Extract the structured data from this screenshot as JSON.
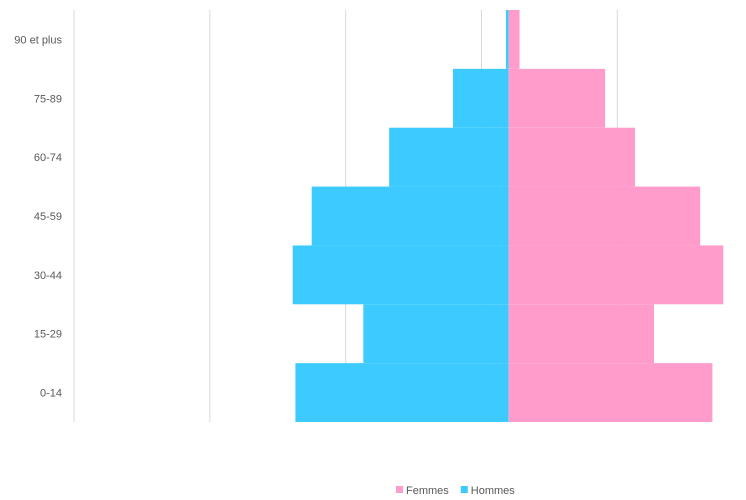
{
  "chart_data": {
    "type": "bar",
    "orientation": "horizontal",
    "layout": "population-pyramid",
    "categories": [
      "0-14",
      "15-29",
      "30-44",
      "45-59",
      "60-74",
      "75-89",
      "90 et plus"
    ],
    "series": [
      {
        "name": "Femmes",
        "color": "#ff9ccc",
        "values": [
          1500,
          1070,
          1580,
          1410,
          930,
          710,
          80
        ]
      },
      {
        "name": "Hommes",
        "color": "#3dcbff",
        "values": [
          1570,
          1070,
          1590,
          1450,
          880,
          410,
          20
        ]
      }
    ],
    "xlim": [
      -3200,
      1600
    ],
    "x_gridlines": [
      -3200,
      -2200,
      -1200,
      -200,
      800
    ],
    "grid": true,
    "legend": {
      "position": "bottom",
      "order": [
        "Femmes",
        "Hommes"
      ]
    }
  }
}
